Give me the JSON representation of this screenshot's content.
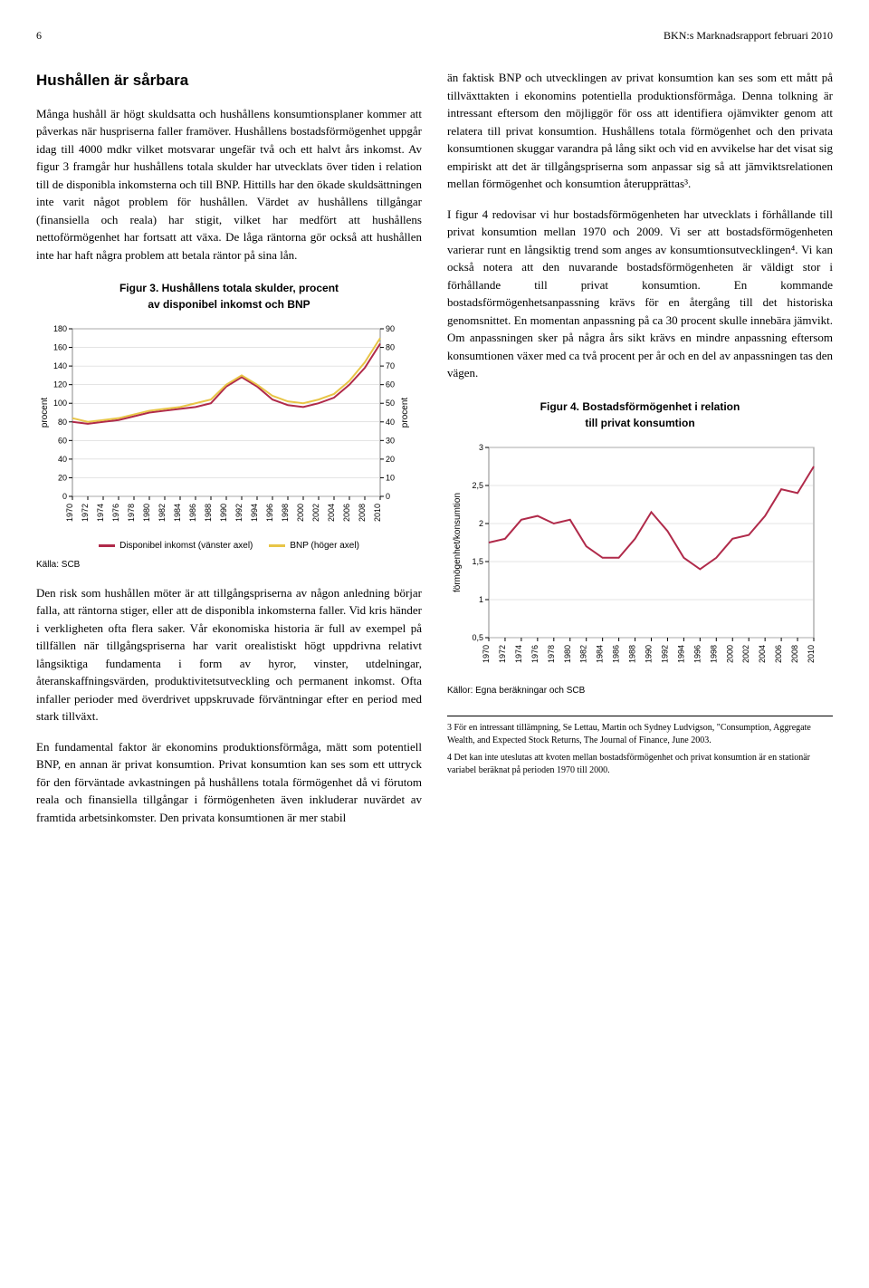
{
  "header": {
    "page_number": "6",
    "report_title": "BKN:s Marknadsrapport februari 2010"
  },
  "left_column": {
    "section_title": "Hushållen är sårbara",
    "para1": "Många hushåll är högt skuldsatta och hushållens konsumtionsplaner kommer att påverkas när huspriserna faller framöver. Hushållens bostadsförmögenhet uppgår idag till 4000 mdkr vilket motsvarar ungefär två och ett halvt års inkomst. Av figur 3 framgår hur hushållens totala skulder har utvecklats över tiden i relation till de disponibla inkomsterna och till BNP. Hittills har den ökade skuldsättningen inte varit något problem för hushållen. Värdet av hushållens tillgångar (finansiella och reala) har stigit, vilket har medfört att hushållens nettoförmögenhet har fortsatt att växa. De låga räntorna gör också att hushållen inte har haft några problem att betala räntor på sina lån.",
    "para2": "Den risk som hushållen möter är att tillgångspriserna av någon anledning börjar falla, att räntorna stiger, eller att de disponibla inkomsterna faller. Vid kris händer i verkligheten ofta flera saker. Vår ekonomiska historia är full av exempel på tillfällen när tillgångspriserna har varit orealistiskt högt uppdrivna relativt långsiktiga fundamenta i form av hyror, vinster, utdelningar, återanskaffningsvärden, produktivitetsutveckling och permanent inkomst. Ofta infaller perioder med överdrivet uppskruvade förväntningar efter en period med stark tillväxt.",
    "para3": "En fundamental faktor är ekonomins produktionsförmåga, mätt som potentiell BNP, en annan är privat konsumtion. Privat konsumtion kan ses som ett uttryck för den förväntade avkastningen på hushållens totala förmögenhet då vi förutom reala och finansiella tillgångar i förmögenheten även inkluderar nuvärdet av framtida arbetsinkomster. Den privata konsumtionen är mer stabil"
  },
  "right_column": {
    "para1": "än faktisk BNP och utvecklingen av privat konsumtion kan ses som ett mått på tillväxttakten i ekonomins potentiella produktionsförmåga. Denna tolkning är intressant eftersom den möjliggör för oss att identifiera ojämvikter genom att relatera till privat konsumtion. Hushållens totala förmögenhet och den privata konsumtionen skuggar varandra på lång sikt och vid en avvikelse har det visat sig empiriskt att det är tillgångspriserna som anpassar sig så att jämviktsrelationen mellan förmögenhet och konsumtion återupprättas³.",
    "para2": "I figur 4 redovisar vi hur bostadsförmögenheten har utvecklats i förhållande till privat konsumtion mellan 1970 och 2009. Vi ser att bostadsförmögenheten varierar runt en långsiktig trend som anges av konsumtionsutvecklingen⁴. Vi kan också notera att den nuvarande bostadsförmögenheten är väldigt stor i förhållande till privat konsumtion. En kommande bostadsförmögenhetsanpassning krävs för en återgång till det historiska genomsnittet. En momentan anpassning på ca 30 procent skulle innebära jämvikt. Om anpassningen sker på några års sikt krävs en mindre anpassning eftersom konsumtionen växer med ca två procent per år och en del av anpassningen tas den vägen."
  },
  "figure3": {
    "title_line1": "Figur 3. Hushållens totala skulder, procent",
    "title_line2": "av disponibel inkomst och BNP",
    "type": "line",
    "y_left_label": "procent",
    "y_right_label": "procent",
    "y_left_min": 0,
    "y_left_max": 180,
    "y_left_step": 20,
    "y_right_min": 0,
    "y_right_max": 90,
    "y_right_step": 10,
    "x_years": [
      1970,
      1972,
      1974,
      1976,
      1978,
      1980,
      1982,
      1984,
      1986,
      1988,
      1990,
      1992,
      1994,
      1996,
      1998,
      2000,
      2002,
      2004,
      2006,
      2008,
      2010
    ],
    "series": [
      {
        "name": "Disponibel inkomst (vänster axel)",
        "color": "#b02a4a",
        "axis": "left",
        "values": [
          80,
          78,
          80,
          82,
          86,
          90,
          92,
          94,
          96,
          100,
          118,
          128,
          118,
          104,
          98,
          96,
          100,
          106,
          120,
          138,
          164
        ]
      },
      {
        "name": "BNP (höger axel)",
        "color": "#e8c547",
        "axis": "right",
        "values": [
          42,
          40,
          41,
          42,
          44,
          46,
          47,
          48,
          50,
          52,
          60,
          65,
          60,
          54,
          51,
          50,
          52,
          55,
          62,
          72,
          85
        ]
      }
    ],
    "legend": [
      {
        "label": "Disponibel inkomst (vänster axel)",
        "color": "#b02a4a"
      },
      {
        "label": "BNP (höger axel)",
        "color": "#e8c547"
      }
    ],
    "source": "Källa: SCB",
    "background": "#ffffff",
    "grid_color": "#c8c8c8",
    "line_width": 2,
    "tick_fontsize": 9
  },
  "figure4": {
    "title_line1": "Figur 4. Bostadsförmögenhet i relation",
    "title_line2": "till privat konsumtion",
    "type": "line",
    "y_label": "förmögenhet/konsumtion",
    "y_min": 0.5,
    "y_max": 3.0,
    "y_step": 0.5,
    "x_years": [
      1970,
      1972,
      1974,
      1976,
      1978,
      1980,
      1982,
      1984,
      1986,
      1988,
      1990,
      1992,
      1994,
      1996,
      1998,
      2000,
      2002,
      2004,
      2006,
      2008,
      2010
    ],
    "series": [
      {
        "name": "ratio",
        "color": "#b02a4a",
        "values": [
          1.75,
          1.8,
          2.05,
          2.1,
          2.0,
          2.05,
          1.7,
          1.55,
          1.55,
          1.8,
          2.15,
          1.9,
          1.55,
          1.4,
          1.55,
          1.8,
          1.85,
          2.1,
          2.45,
          2.4,
          2.75
        ]
      }
    ],
    "source": "Källor: Egna beräkningar och SCB",
    "background": "#ffffff",
    "grid_color": "#c8c8c8",
    "line_width": 2,
    "tick_fontsize": 9
  },
  "footnotes": {
    "fn3": "3 För en intressant tillämpning, Se Lettau, Martin och Sydney Ludvigson, \"Consumption, Aggregate Wealth, and Expected Stock Returns, The Journal of Finance, June 2003.",
    "fn4": "4 Det kan inte uteslutas att kvoten mellan bostadsförmögenhet och privat konsumtion är en stationär variabel beräknat på perioden 1970 till 2000."
  }
}
